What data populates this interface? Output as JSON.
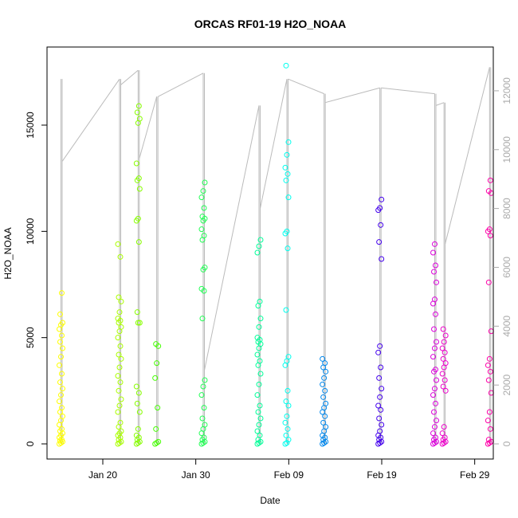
{
  "chart_data": {
    "type": "scatter",
    "title": "ORCAS RF01-19 H2O_NOAA",
    "xlabel": "Date",
    "ylabel": "H2O_NOAA",
    "xlim": [
      "2016-01-14",
      "2016-03-02"
    ],
    "ylim": [
      0,
      18000
    ],
    "x_ticks": [
      {
        "date": "2016-01-20",
        "label": "Jan 20"
      },
      {
        "date": "2016-01-30",
        "label": "Jan 30"
      },
      {
        "date": "2016-02-09",
        "label": "Feb 09"
      },
      {
        "date": "2016-02-19",
        "label": "Feb 19"
      },
      {
        "date": "2016-02-29",
        "label": "Feb 29"
      }
    ],
    "y_ticks": [
      0,
      5000,
      10000,
      15000
    ],
    "y2_ticks": [
      0,
      2000,
      4000,
      6000,
      8000,
      10000,
      12000
    ],
    "y2lim": [
      0,
      13000
    ],
    "y2_color": "#aaaaaa",
    "trace_color": "#bbbbbb",
    "grid": false,
    "flights": [
      {
        "date": "2016-01-15.5",
        "color": "#ffff00",
        "values": [
          0,
          50,
          100,
          150,
          200,
          300,
          400,
          500,
          600,
          700,
          900,
          1100,
          1300,
          1500,
          1700,
          2000,
          2300,
          2600,
          2900,
          3300,
          3700,
          4100,
          4500,
          4800,
          5100,
          5400,
          5600,
          5700,
          6100,
          7100
        ],
        "trace": {
          "top": 12400,
          "end": 9600
        }
      },
      {
        "date": "2016-01-21.8",
        "color": "#aaff00",
        "values": [
          0,
          50,
          100,
          200,
          300,
          400,
          500,
          600,
          800,
          1000,
          1500,
          1800,
          2100,
          2500,
          2900,
          3200,
          3600,
          4000,
          4200,
          4600,
          5000,
          5300,
          5500,
          5700,
          5800,
          5900,
          6200,
          6700,
          6900,
          8800,
          9400
        ],
        "trace": {
          "top": 12400,
          "end": 12200
        }
      },
      {
        "date": "2016-01-23.8",
        "color": "#88ff00",
        "values": [
          0,
          50,
          100,
          200,
          300,
          400,
          700,
          1500,
          1900,
          2400,
          2700,
          5700,
          5700,
          6200,
          9500,
          10500,
          10600,
          12000,
          12400,
          12500,
          13200,
          15100,
          15300,
          15600,
          15900
        ],
        "trace": {
          "top": 12700,
          "end": 9700
        }
      },
      {
        "date": "2016-01-25.8",
        "color": "#44ff00",
        "values": [
          0,
          50,
          100,
          700,
          1700,
          3100,
          3800,
          4600,
          4700
        ],
        "trace": {
          "top": 11800,
          "end": 11800
        }
      },
      {
        "date": "2016-01-30.8",
        "color": "#22ff55",
        "values": [
          0,
          50,
          100,
          200,
          300,
          500,
          700,
          900,
          1200,
          1700,
          2300,
          2700,
          3000,
          5900,
          7200,
          7300,
          8200,
          8300,
          9600,
          9800,
          10100,
          10500,
          10600,
          10700,
          11100,
          11600,
          11900,
          12300
        ],
        "trace": {
          "top": 12600,
          "end": 2500
        }
      },
      {
        "date": "2016-02-05.8",
        "color": "#00ff99",
        "values": [
          0,
          50,
          100,
          200,
          400,
          600,
          900,
          1200,
          1500,
          1800,
          2300,
          2800,
          3300,
          3700,
          3900,
          4200,
          4500,
          4700,
          4800,
          4900,
          5000,
          5500,
          5900,
          6500,
          6700,
          9000,
          9300,
          9600
        ],
        "trace": {
          "top": 11500,
          "end": 8000
        }
      },
      {
        "date": "2016-02-08.8",
        "color": "#00ffee",
        "values": [
          0,
          50,
          200,
          400,
          700,
          1000,
          1300,
          1800,
          2000,
          2500,
          3700,
          3900,
          4100,
          6300,
          9200,
          9900,
          10000,
          11600,
          12400,
          12700,
          13000,
          13600,
          14200,
          17800
        ],
        "trace": {
          "top": 12400,
          "end": 12400
        }
      },
      {
        "date": "2016-02-12.8",
        "color": "#0088ee",
        "values": [
          0,
          50,
          100,
          200,
          300,
          400,
          600,
          800,
          1000,
          1300,
          1500,
          1700,
          1900,
          2200,
          2500,
          2800,
          3100,
          3400,
          3600,
          3800,
          4000
        ],
        "trace": {
          "top": 11900,
          "end": 11600
        }
      },
      {
        "date": "2016-02-18.8",
        "color": "#4400ee",
        "values": [
          0,
          50,
          100,
          200,
          300,
          400,
          600,
          900,
          1200,
          1600,
          1800,
          2200,
          2600,
          3100,
          3600,
          4300,
          4600,
          8700,
          9500,
          10300,
          11000,
          11100,
          11500
        ],
        "trace": {
          "top": 12100,
          "end": 12100
        }
      },
      {
        "date": "2016-02-24.7",
        "color": "#dd00dd",
        "values": [
          0,
          50,
          100,
          200,
          300,
          500,
          800,
          1100,
          1500,
          1900,
          2300,
          2600,
          3000,
          3400,
          3500,
          4100,
          4500,
          4800,
          5400,
          6100,
          6600,
          6800,
          7600,
          8100,
          8400,
          9000,
          9400
        ],
        "trace": {
          "top": 11900,
          "end": 11500
        }
      },
      {
        "date": "2016-02-25.7",
        "color": "#ee00cc",
        "values": [
          0,
          50,
          100,
          200,
          300,
          500,
          800,
          2500,
          2700,
          3000,
          3300,
          3600,
          3800,
          4000,
          4300,
          4500,
          4800,
          5100,
          5400
        ],
        "trace": {
          "top": 11600,
          "end": 6800
        }
      },
      {
        "date": "2016-03-01.6",
        "color": "#ff00aa",
        "values": [
          0,
          50,
          100,
          200,
          700,
          1100,
          1500,
          2400,
          3000,
          3400,
          3700,
          4000,
          5300,
          7600,
          9800,
          10000,
          10100,
          11800,
          11900,
          12400
        ],
        "trace": {
          "top": 12800,
          "end": 12800
        }
      }
    ]
  }
}
